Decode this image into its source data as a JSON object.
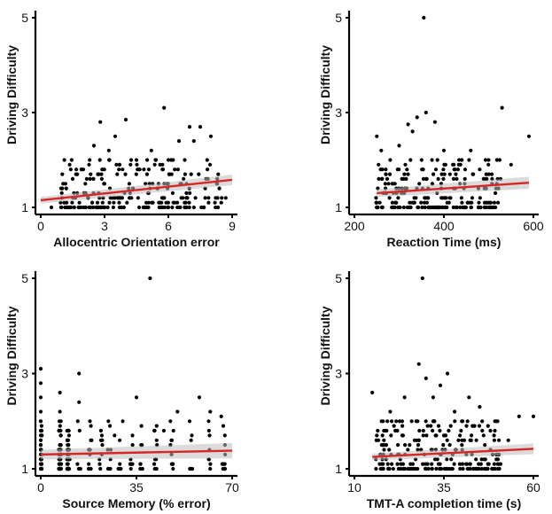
{
  "colors": {
    "fit_line": "#d62728",
    "confidence_band": "#bdbdbd",
    "points": "#000000"
  },
  "chart_data": [
    {
      "type": "scatter",
      "xlabel": "Allocentric Orientation error",
      "ylabel": "Driving Difficulty",
      "xlim": [
        0,
        9
      ],
      "ylim": [
        1,
        5
      ],
      "xticks": [
        "0",
        "3",
        "6",
        "9"
      ],
      "yticks": [
        "1",
        "3",
        "5"
      ],
      "regression": {
        "x": [
          0,
          9
        ],
        "y": [
          1.15,
          1.58
        ],
        "band": 0.07
      },
      "sample_points": [
        [
          0.5,
          1.0
        ],
        [
          1,
          1.2
        ],
        [
          1.2,
          1.4
        ],
        [
          1.5,
          1.6
        ],
        [
          2,
          1.8
        ],
        [
          2.3,
          2.0
        ],
        [
          2.5,
          2.3
        ],
        [
          2.8,
          2.8
        ],
        [
          3,
          1.5
        ],
        [
          3.2,
          2.2
        ],
        [
          3.5,
          2.5
        ],
        [
          3.7,
          1.9
        ],
        [
          4,
          2.85
        ],
        [
          4.2,
          1.3
        ],
        [
          4.5,
          2.0
        ],
        [
          5,
          1.7
        ],
        [
          5.2,
          2.2
        ],
        [
          5.5,
          1.4
        ],
        [
          5.8,
          3.1
        ],
        [
          6,
          2.0
        ],
        [
          6.3,
          1.8
        ],
        [
          6.5,
          2.4
        ],
        [
          7,
          2.7
        ],
        [
          7.2,
          2.4
        ],
        [
          7.5,
          2.7
        ],
        [
          8,
          2.5
        ],
        [
          8.3,
          1.6
        ],
        [
          8.7,
          1.2
        ]
      ],
      "points_note": "dense cluster of discrete ratings at 1.0 and 1.2 across the x range"
    },
    {
      "type": "scatter",
      "xlabel": "Reaction Time (ms)",
      "ylabel": "Driving Difficulty",
      "xlim": [
        200,
        600
      ],
      "ylim": [
        1,
        5
      ],
      "xticks": [
        "200",
        "400",
        "600"
      ],
      "yticks": [
        "1",
        "3",
        "5"
      ],
      "regression": {
        "x": [
          250,
          590
        ],
        "y": [
          1.3,
          1.52
        ],
        "band": 0.08
      },
      "sample_points": [
        [
          250,
          2.5
        ],
        [
          260,
          2.2
        ],
        [
          270,
          1.8
        ],
        [
          280,
          2.0
        ],
        [
          300,
          2.3
        ],
        [
          310,
          1.6
        ],
        [
          320,
          2.75
        ],
        [
          330,
          2.6
        ],
        [
          340,
          2.9
        ],
        [
          350,
          2.0
        ],
        [
          355,
          5.0
        ],
        [
          360,
          3.0
        ],
        [
          380,
          2.8
        ],
        [
          400,
          2.2
        ],
        [
          420,
          1.9
        ],
        [
          440,
          2.0
        ],
        [
          460,
          2.2
        ],
        [
          480,
          1.8
        ],
        [
          500,
          2.0
        ],
        [
          520,
          1.6
        ],
        [
          530,
          3.1
        ],
        [
          550,
          1.9
        ],
        [
          590,
          2.5
        ]
      ],
      "points_note": "dense cluster between 250 and 550 ms at low ratings"
    },
    {
      "type": "scatter",
      "xlabel": "Source Memory (% error)",
      "ylabel": "Driving Difficulty",
      "xlim": [
        0,
        70
      ],
      "ylim": [
        1,
        5
      ],
      "xticks": [
        "0",
        "35",
        "70"
      ],
      "yticks": [
        "1",
        "3",
        "5"
      ],
      "regression": {
        "x": [
          0,
          70
        ],
        "y": [
          1.3,
          1.38
        ],
        "band": 0.1
      },
      "sample_points": [
        [
          0,
          3.1
        ],
        [
          0,
          2.8
        ],
        [
          0,
          2.5
        ],
        [
          0,
          2.2
        ],
        [
          7,
          2.6
        ],
        [
          7,
          2.2
        ],
        [
          14,
          3.0
        ],
        [
          14,
          2.4
        ],
        [
          18,
          2.0
        ],
        [
          22,
          1.8
        ],
        [
          27,
          1.7
        ],
        [
          30,
          2.0
        ],
        [
          35,
          2.5
        ],
        [
          40,
          5.0
        ],
        [
          45,
          1.8
        ],
        [
          50,
          2.2
        ],
        [
          55,
          1.6
        ],
        [
          58,
          2.5
        ],
        [
          62,
          2.2
        ],
        [
          66,
          2.1
        ]
      ],
      "points_note": "vertical stripes of points at discrete % error values"
    },
    {
      "type": "scatter",
      "xlabel": "TMT-A completion time (s)",
      "ylabel": "Driving Difficulty",
      "xlim": [
        10,
        60
      ],
      "ylim": [
        1,
        5
      ],
      "xticks": [
        "10",
        "35",
        "60"
      ],
      "yticks": [
        "1",
        "3",
        "5"
      ],
      "regression": {
        "x": [
          15,
          60
        ],
        "y": [
          1.25,
          1.42
        ],
        "band": 0.07
      },
      "sample_points": [
        [
          15,
          2.6
        ],
        [
          18,
          2.0
        ],
        [
          20,
          2.2
        ],
        [
          22,
          1.8
        ],
        [
          24,
          2.5
        ],
        [
          26,
          2.0
        ],
        [
          28,
          3.2
        ],
        [
          29,
          5.0
        ],
        [
          30,
          2.9
        ],
        [
          32,
          2.5
        ],
        [
          34,
          2.75
        ],
        [
          36,
          3.0
        ],
        [
          38,
          2.2
        ],
        [
          40,
          2.0
        ],
        [
          42,
          2.5
        ],
        [
          45,
          2.3
        ],
        [
          48,
          1.8
        ],
        [
          50,
          2.0
        ],
        [
          53,
          1.6
        ],
        [
          56,
          2.1
        ],
        [
          60,
          2.1
        ]
      ],
      "points_note": "dense cluster between 15 and 50 s at low ratings"
    }
  ]
}
